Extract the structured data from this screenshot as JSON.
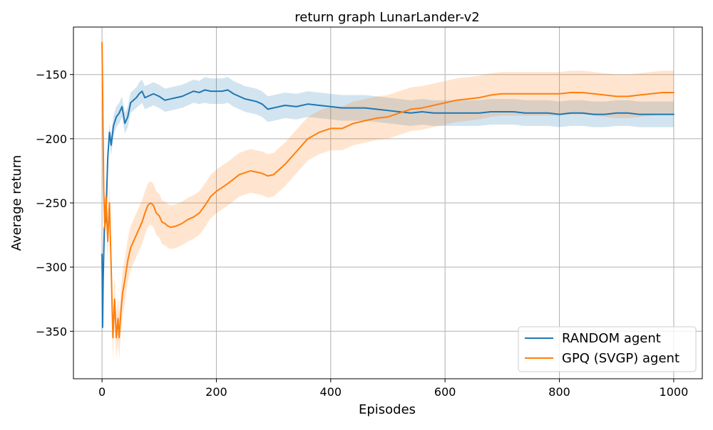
{
  "chart_data": {
    "type": "line",
    "title": "return graph LunarLander-v2",
    "xlabel": "Episodes",
    "ylabel": "Average return",
    "xlim": [
      -50,
      1050
    ],
    "ylim": [
      -387,
      -113
    ],
    "xticks": [
      0,
      200,
      400,
      600,
      800,
      1000
    ],
    "yticks": [
      -350,
      -300,
      -250,
      -200,
      -150
    ],
    "xtick_labels": [
      "0",
      "200",
      "400",
      "600",
      "800",
      "1000"
    ],
    "ytick_labels": [
      "−350",
      "−300",
      "−250",
      "−200",
      "−150"
    ],
    "grid": true,
    "legend_position": "lower-right",
    "series": [
      {
        "name": "RANDOM agent",
        "color": "#1f77b4",
        "band_color": "#1f77b4",
        "x": [
          0,
          1,
          2,
          4,
          6,
          8,
          10,
          13,
          16,
          20,
          25,
          30,
          35,
          40,
          45,
          50,
          55,
          60,
          65,
          70,
          75,
          80,
          90,
          100,
          110,
          120,
          130,
          140,
          150,
          160,
          170,
          180,
          190,
          200,
          210,
          220,
          230,
          240,
          250,
          260,
          270,
          280,
          290,
          300,
          320,
          340,
          360,
          380,
          400,
          420,
          440,
          460,
          480,
          500,
          520,
          540,
          560,
          580,
          600,
          620,
          640,
          660,
          680,
          700,
          720,
          740,
          760,
          780,
          800,
          820,
          840,
          860,
          880,
          900,
          920,
          940,
          960,
          980,
          1000
        ],
        "y": [
          -290,
          -347,
          -310,
          -270,
          -265,
          -245,
          -215,
          -195,
          -205,
          -190,
          -183,
          -180,
          -175,
          -188,
          -183,
          -172,
          -170,
          -168,
          -165,
          -163,
          -168,
          -167,
          -165,
          -167,
          -170,
          -169,
          -168,
          -167,
          -165,
          -163,
          -164,
          -162,
          -163,
          -163,
          -163,
          -162,
          -165,
          -167,
          -169,
          -170,
          -171,
          -173,
          -177,
          -176,
          -174,
          -175,
          -173,
          -174,
          -175,
          -176,
          -176,
          -176,
          -177,
          -178,
          -179,
          -180,
          -179,
          -180,
          -180,
          -180,
          -180,
          -180,
          -179,
          -179,
          -179,
          -180,
          -180,
          -180,
          -181,
          -180,
          -180,
          -181,
          -181,
          -180,
          -180,
          -181,
          -181,
          -181,
          -181
        ],
        "band_halfwidth": [
          0,
          0,
          4,
          6,
          6,
          7,
          7,
          7,
          8,
          8,
          8,
          8,
          8,
          8,
          8,
          8,
          8,
          8,
          9,
          9,
          9,
          9,
          9,
          9,
          9,
          9,
          9,
          9,
          9,
          9,
          9,
          10,
          10,
          10,
          10,
          10,
          10,
          10,
          10,
          10,
          10,
          10,
          10,
          10,
          10,
          10,
          10,
          10,
          10,
          10,
          10,
          10,
          10,
          10,
          10,
          10,
          10,
          10,
          10,
          10,
          10,
          10,
          10,
          10,
          10,
          10,
          10,
          10,
          10,
          10,
          10,
          10,
          10,
          10,
          10,
          10,
          10,
          10,
          10
        ]
      },
      {
        "name": "GPQ (SVGP) agent",
        "color": "#ff7f0e",
        "band_color": "#ff7f0e",
        "x": [
          0,
          1,
          3,
          5,
          7,
          10,
          13,
          16,
          19,
          22,
          25,
          28,
          30,
          33,
          36,
          40,
          45,
          50,
          55,
          60,
          65,
          70,
          75,
          80,
          85,
          90,
          95,
          100,
          105,
          110,
          115,
          120,
          130,
          140,
          150,
          160,
          170,
          180,
          190,
          200,
          220,
          240,
          260,
          280,
          290,
          300,
          320,
          340,
          360,
          380,
          400,
          420,
          440,
          460,
          480,
          500,
          520,
          540,
          560,
          580,
          600,
          620,
          640,
          660,
          680,
          700,
          720,
          740,
          760,
          780,
          800,
          820,
          840,
          860,
          880,
          900,
          920,
          940,
          960,
          980,
          1000
        ],
        "y": [
          -125,
          -160,
          -240,
          -270,
          -245,
          -280,
          -250,
          -300,
          -355,
          -325,
          -355,
          -340,
          -355,
          -335,
          -320,
          -310,
          -295,
          -285,
          -280,
          -275,
          -270,
          -265,
          -258,
          -252,
          -250,
          -252,
          -258,
          -260,
          -265,
          -266,
          -268,
          -269,
          -268,
          -266,
          -263,
          -261,
          -258,
          -252,
          -245,
          -241,
          -235,
          -228,
          -225,
          -227,
          -229,
          -228,
          -220,
          -210,
          -200,
          -195,
          -192,
          -192,
          -188,
          -186,
          -184,
          -183,
          -180,
          -177,
          -176,
          -174,
          -172,
          -170,
          -169,
          -168,
          -166,
          -165,
          -165,
          -165,
          -165,
          -165,
          -165,
          -164,
          -164,
          -165,
          -166,
          -167,
          -167,
          -166,
          -165,
          -164,
          -164
        ],
        "band_halfwidth": [
          0,
          12,
          14,
          15,
          15,
          16,
          16,
          16,
          17,
          17,
          17,
          17,
          17,
          17,
          17,
          17,
          17,
          17,
          17,
          17,
          17,
          17,
          17,
          17,
          17,
          17,
          17,
          17,
          17,
          17,
          17,
          17,
          17,
          17,
          17,
          17,
          17,
          17,
          17,
          17,
          17,
          17,
          17,
          17,
          17,
          17,
          17,
          17,
          17,
          17,
          17,
          17,
          17,
          17,
          17,
          17,
          17,
          17,
          17,
          17,
          17,
          17,
          17,
          17,
          17,
          17,
          17,
          17,
          17,
          17,
          17,
          17,
          17,
          17,
          17,
          17,
          17,
          17,
          17,
          17,
          17
        ]
      }
    ]
  }
}
